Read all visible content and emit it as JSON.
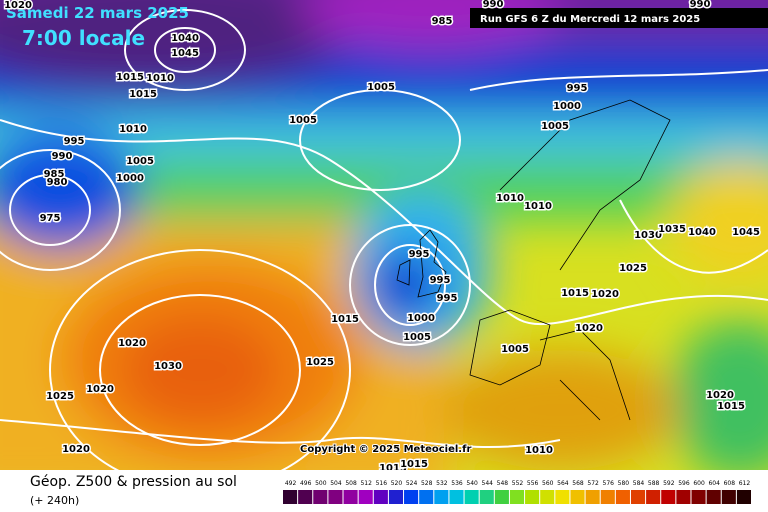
{
  "header": {
    "date": "Samedi 22 mars 2025",
    "time": "7:00 locale",
    "run": "Run GFS 6 Z du Mercredi 12 mars 2025"
  },
  "copyright": "Copyright © 2025 Meteociel.fr",
  "footer": {
    "title": "Géop. Z500 & pression au sol",
    "range": "(+ 240h)"
  },
  "legend": {
    "levels": [
      492,
      496,
      500,
      504,
      508,
      512,
      516,
      520,
      524,
      528,
      532,
      536,
      540,
      544,
      548,
      552,
      556,
      560,
      564,
      568,
      572,
      576,
      580,
      584,
      588,
      592,
      596,
      600,
      604,
      608,
      612
    ]
  },
  "isobar_labels": [
    "1020",
    "990",
    "990",
    "985",
    "1040",
    "1045",
    "1015",
    "1010",
    "1015",
    "1005",
    "995",
    "1000",
    "1005",
    "1005",
    "1010",
    "995",
    "990",
    "1005",
    "985",
    "980",
    "1000",
    "1010",
    "1010",
    "975",
    "1030",
    "1035",
    "1040",
    "1045",
    "995",
    "1025",
    "995",
    "995",
    "1015",
    "1020",
    "1015",
    "1000",
    "1020",
    "1005",
    "1020",
    "1005",
    "1030",
    "1025",
    "1020",
    "1025",
    "1020",
    "1015",
    "1020",
    "1010",
    "1015",
    "1015"
  ]
}
